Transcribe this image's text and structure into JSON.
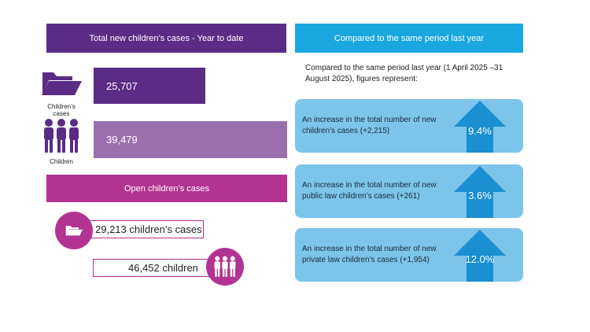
{
  "left": {
    "header": "Total new children’s cases - Year to date",
    "cases_value": "25,707",
    "cases_icon_label": "Children’s cases",
    "children_value": "39,479",
    "children_icon_label": "Children",
    "open_header": "Open children’s cases",
    "open_cases_text": "29,213 children’s cases",
    "open_children_text": "46,452 children"
  },
  "right": {
    "header": "Compared to the same period last year",
    "intro": "Compared to the same period last year (1 April 2025 –31 August 2025), figures represent:",
    "cards": [
      {
        "text": "An increase in the total number of new children’s cases (+2,215)",
        "pct": "9.4%"
      },
      {
        "text": "An increase in the total number of new public law children’s cases (+261)",
        "pct": "3.6%"
      },
      {
        "text": "An increase in the total number of new private law children’s cases (+1,954)",
        "pct": "12.0%"
      }
    ]
  },
  "colors": {
    "purple": "#5b2c86",
    "lilac": "#9b6fae",
    "magenta": "#b23392",
    "blue": "#1aa7e0",
    "light_blue": "#7cc4ea",
    "arrow_blue": "#1a8fd1"
  },
  "icons": [
    "folder-icon",
    "people-icon"
  ]
}
